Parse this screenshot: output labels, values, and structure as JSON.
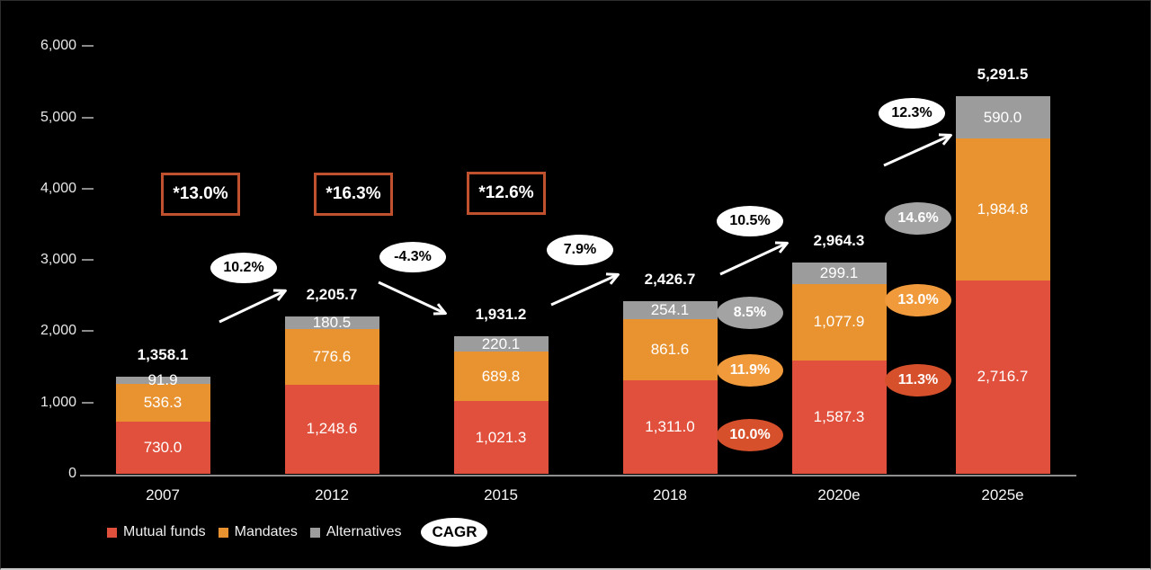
{
  "page": {
    "background": "#000000"
  },
  "chart_data": {
    "type": "bar",
    "stacked": true,
    "title": "",
    "xlabel": "",
    "ylabel": "",
    "categories": [
      "2007",
      "2012",
      "2015",
      "2018",
      "2020e",
      "2025e"
    ],
    "series": [
      {
        "name": "Mutual funds",
        "color": "#e0503c",
        "values": [
          730.0,
          1248.6,
          1021.3,
          1311.0,
          1587.3,
          2716.7
        ],
        "labels": [
          "730.0",
          "1,248.6",
          "1,021.3",
          "1,311.0",
          "1,587.3",
          "2,716.7"
        ]
      },
      {
        "name": "Mandates",
        "color": "#e89330",
        "values": [
          536.3,
          776.6,
          689.8,
          861.6,
          1077.9,
          1984.8
        ],
        "labels": [
          "536.3",
          "776.6",
          "689.8",
          "861.6",
          "1,077.9",
          "1,984.8"
        ]
      },
      {
        "name": "Alternatives",
        "color": "#9c9c9c",
        "values": [
          91.9,
          180.5,
          220.1,
          254.1,
          299.1,
          590.0
        ],
        "labels": [
          "91.9",
          "180.5",
          "220.1",
          "254.1",
          "299.1",
          "590.0"
        ]
      }
    ],
    "totals": {
      "values": [
        1358.1,
        2205.7,
        1931.2,
        2426.7,
        2964.3,
        5291.5
      ],
      "labels": [
        "1,358.1",
        "2,205.7",
        "1,931.2",
        "2,426.7",
        "2,964.3",
        "5,291.5"
      ]
    },
    "ylim": [
      0,
      6000
    ],
    "yticks": [
      "0",
      "1,000",
      "2,000",
      "3,000",
      "4,000",
      "5,000",
      "6,000"
    ],
    "grid": false,
    "legend_position": "bottom",
    "annotations": {
      "period_cagr_boxes": [
        {
          "label": "*13.0%",
          "near_category": "2007"
        },
        {
          "label": "*16.3%",
          "near_category": "2012"
        },
        {
          "label": "*12.6%",
          "near_category": "2015"
        }
      ],
      "growth_arrows": [
        {
          "label": "10.2%",
          "from": "2007",
          "to": "2012"
        },
        {
          "label": "-4.3%",
          "from": "2012",
          "to": "2015"
        },
        {
          "label": "7.9%",
          "from": "2015",
          "to": "2018"
        },
        {
          "label": "10.5%",
          "from": "2018",
          "to": "2020e"
        },
        {
          "label": "12.3%",
          "from": "2020e",
          "to": "2025e"
        }
      ],
      "segment_cagr_badges": [
        {
          "group": "2018-2020e",
          "items": [
            {
              "label": "8.5%",
              "series": "Alternatives",
              "color": "#a3a3a3"
            },
            {
              "label": "11.9%",
              "series": "Mandates",
              "color": "#f09a3c"
            },
            {
              "label": "10.0%",
              "series": "Mutual funds",
              "color": "#d7502c"
            }
          ]
        },
        {
          "group": "2020e-2025e",
          "items": [
            {
              "label": "14.6%",
              "series": "Alternatives",
              "color": "#a3a3a3"
            },
            {
              "label": "13.0%",
              "series": "Mandates",
              "color": "#f09a3c"
            },
            {
              "label": "11.3%",
              "series": "Mutual funds",
              "color": "#d7502c"
            }
          ]
        }
      ]
    }
  },
  "legend": {
    "items": [
      {
        "label": "Mutual funds",
        "color": "#e0503c"
      },
      {
        "label": "Mandates",
        "color": "#e89330"
      },
      {
        "label": "Alternatives",
        "color": "#9c9c9c"
      }
    ],
    "cagr_label": "CAGR"
  }
}
